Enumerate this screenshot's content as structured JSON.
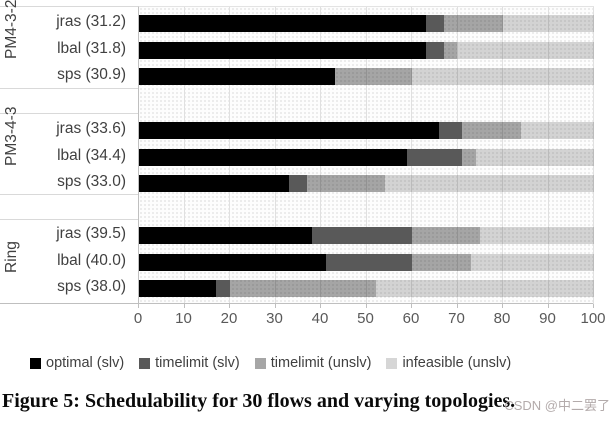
{
  "chart_data": {
    "type": "bar",
    "orientation": "horizontal",
    "stacked": true,
    "title": "",
    "xlabel": "",
    "ylabel": "",
    "x_axis": {
      "min": 0,
      "max": 100,
      "tick_step": 10,
      "ticks": [
        0,
        10,
        20,
        30,
        40,
        50,
        60,
        70,
        80,
        90,
        100
      ]
    },
    "grid": true,
    "legend_position": "bottom",
    "series": [
      {
        "name": "optimal (slv)",
        "color": "#000000"
      },
      {
        "name": "timelimit (slv)",
        "color": "#595959"
      },
      {
        "name": "timelimit (unslv)",
        "color": "#a6a6a6"
      },
      {
        "name": "infeasible (unslv)",
        "color": "#d6d6d6"
      }
    ],
    "groups": [
      {
        "label": "PM4-3-2",
        "rows": [
          {
            "label": "jras (31.2)",
            "values": [
              63,
              4,
              13,
              20
            ]
          },
          {
            "label": "lbal (31.8)",
            "values": [
              63,
              4,
              3,
              30
            ]
          },
          {
            "label": "sps (30.9)",
            "values": [
              43,
              0,
              17,
              40
            ]
          }
        ]
      },
      {
        "label": "PM3-4-3",
        "rows": [
          {
            "label": "jras (33.6)",
            "values": [
              66,
              5,
              13,
              16
            ]
          },
          {
            "label": "lbal (34.4)",
            "values": [
              59,
              12,
              3,
              26
            ]
          },
          {
            "label": "sps (33.0)",
            "values": [
              33,
              4,
              17,
              46
            ]
          }
        ]
      },
      {
        "label": "Ring",
        "rows": [
          {
            "label": "jras (39.5)",
            "values": [
              38,
              22,
              15,
              25
            ]
          },
          {
            "label": "lbal (40.0)",
            "values": [
              41,
              19,
              13,
              27
            ]
          },
          {
            "label": "sps (38.0)",
            "values": [
              17,
              3,
              32,
              48
            ]
          }
        ]
      }
    ]
  },
  "caption": "Figure 5: Schedulability for 30 flows and varying topologies.",
  "watermark": "CSDN @中二罢了",
  "colors": {
    "axis_text": "#595959",
    "label_text": "#404040",
    "gridline": "#e0e0e0",
    "axis_line": "#bfbfbf",
    "caption_text": "#0a0a0a",
    "watermark_text": "#afa6a6"
  }
}
